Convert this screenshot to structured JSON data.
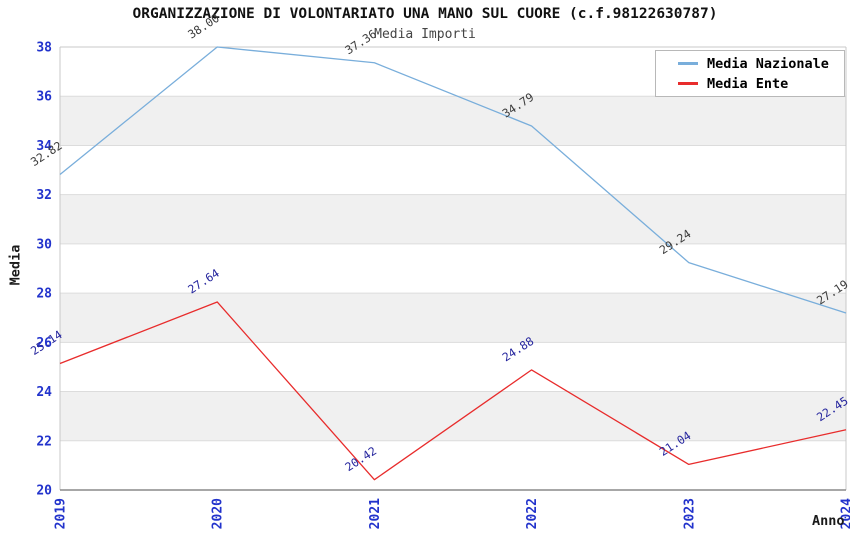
{
  "title": "ORGANIZZAZIONE DI VOLONTARIATO UNA MANO SUL CUORE (c.f.98122630787)",
  "subtitle": "Media Importi",
  "chart_data": {
    "type": "line",
    "title": "ORGANIZZAZIONE DI VOLONTARIATO UNA MANO SUL CUORE (c.f.98122630787)",
    "subtitle": "Media Importi",
    "categories": [
      "2019",
      "2020",
      "2021",
      "2022",
      "2023",
      "2024"
    ],
    "series": [
      {
        "name": "Media Nazionale",
        "color": "#79aedb",
        "label_color": "#3c3c3c",
        "values": [
          32.82,
          38.0,
          37.36,
          34.79,
          29.24,
          27.19
        ]
      },
      {
        "name": "Media Ente",
        "color": "#e82c2c",
        "label_color": "#26269e",
        "values": [
          25.14,
          27.64,
          20.42,
          24.88,
          21.04,
          22.45
        ]
      }
    ],
    "xlabel": "Anno",
    "ylabel": "Media",
    "ylim": [
      20,
      38
    ],
    "yticks": [
      20,
      22,
      24,
      26,
      28,
      30,
      32,
      34,
      36,
      38
    ],
    "ytick_step": 2,
    "grid": "horizontal-bands",
    "band_color": "#f0f0f0",
    "tick_color": "#2233cc",
    "legend_position": "top-right"
  }
}
